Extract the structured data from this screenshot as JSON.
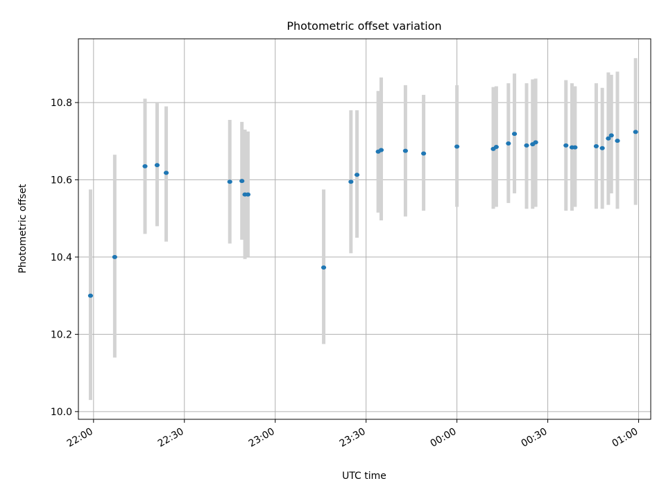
{
  "chart_data": {
    "type": "scatter",
    "title": "Photometric offset variation",
    "xlabel": "UTC time",
    "ylabel": "Photometric offset",
    "grid": true,
    "x_is_time": true,
    "xlim": [
      "21:55",
      "01:04"
    ],
    "ylim": [
      9.98,
      10.965
    ],
    "xticks": [
      "22:00",
      "22:30",
      "23:00",
      "23:30",
      "00:00",
      "00:30",
      "01:00"
    ],
    "yticks": [
      "10.0",
      "10.2",
      "10.4",
      "10.6",
      "10.8"
    ],
    "colors": {
      "points": "#1f77b4",
      "errorbars": "#d3d3d3"
    },
    "points": [
      {
        "x": "21:59",
        "y": 10.3,
        "ylow": 10.03,
        "yhigh": 10.575
      },
      {
        "x": "22:07",
        "y": 10.4,
        "ylow": 10.14,
        "yhigh": 10.665
      },
      {
        "x": "22:17",
        "y": 10.635,
        "ylow": 10.46,
        "yhigh": 10.81
      },
      {
        "x": "22:21",
        "y": 10.638,
        "ylow": 10.48,
        "yhigh": 10.8
      },
      {
        "x": "22:24",
        "y": 10.618,
        "ylow": 10.44,
        "yhigh": 10.79
      },
      {
        "x": "22:45",
        "y": 10.595,
        "ylow": 10.435,
        "yhigh": 10.755
      },
      {
        "x": "22:49",
        "y": 10.597,
        "ylow": 10.445,
        "yhigh": 10.75
      },
      {
        "x": "22:50",
        "y": 10.562,
        "ylow": 10.395,
        "yhigh": 10.73
      },
      {
        "x": "22:51",
        "y": 10.562,
        "ylow": 10.4,
        "yhigh": 10.725
      },
      {
        "x": "23:16",
        "y": 10.373,
        "ylow": 10.175,
        "yhigh": 10.575
      },
      {
        "x": "23:25",
        "y": 10.595,
        "ylow": 10.41,
        "yhigh": 10.78
      },
      {
        "x": "23:27",
        "y": 10.613,
        "ylow": 10.45,
        "yhigh": 10.78
      },
      {
        "x": "23:34",
        "y": 10.673,
        "ylow": 10.515,
        "yhigh": 10.83
      },
      {
        "x": "23:35",
        "y": 10.677,
        "ylow": 10.495,
        "yhigh": 10.865
      },
      {
        "x": "23:43",
        "y": 10.675,
        "ylow": 10.505,
        "yhigh": 10.845
      },
      {
        "x": "23:49",
        "y": 10.668,
        "ylow": 10.52,
        "yhigh": 10.82
      },
      {
        "x": "00:00",
        "y": 10.686,
        "ylow": 10.53,
        "yhigh": 10.845
      },
      {
        "x": "00:12",
        "y": 10.68,
        "ylow": 10.525,
        "yhigh": 10.84
      },
      {
        "x": "00:13",
        "y": 10.685,
        "ylow": 10.53,
        "yhigh": 10.842
      },
      {
        "x": "00:17",
        "y": 10.694,
        "ylow": 10.54,
        "yhigh": 10.85
      },
      {
        "x": "00:19",
        "y": 10.719,
        "ylow": 10.565,
        "yhigh": 10.875
      },
      {
        "x": "00:23",
        "y": 10.689,
        "ylow": 10.525,
        "yhigh": 10.85
      },
      {
        "x": "00:25",
        "y": 10.692,
        "ylow": 10.525,
        "yhigh": 10.86
      },
      {
        "x": "00:26",
        "y": 10.697,
        "ylow": 10.53,
        "yhigh": 10.862
      },
      {
        "x": "00:36",
        "y": 10.689,
        "ylow": 10.52,
        "yhigh": 10.858
      },
      {
        "x": "00:38",
        "y": 10.684,
        "ylow": 10.52,
        "yhigh": 10.85
      },
      {
        "x": "00:39",
        "y": 10.684,
        "ylow": 10.53,
        "yhigh": 10.842
      },
      {
        "x": "00:46",
        "y": 10.687,
        "ylow": 10.525,
        "yhigh": 10.85
      },
      {
        "x": "00:48",
        "y": 10.682,
        "ylow": 10.525,
        "yhigh": 10.838
      },
      {
        "x": "00:50",
        "y": 10.707,
        "ylow": 10.535,
        "yhigh": 10.878
      },
      {
        "x": "00:51",
        "y": 10.715,
        "ylow": 10.565,
        "yhigh": 10.872
      },
      {
        "x": "00:53",
        "y": 10.701,
        "ylow": 10.525,
        "yhigh": 10.88
      },
      {
        "x": "00:59",
        "y": 10.724,
        "ylow": 10.535,
        "yhigh": 10.915
      }
    ]
  }
}
